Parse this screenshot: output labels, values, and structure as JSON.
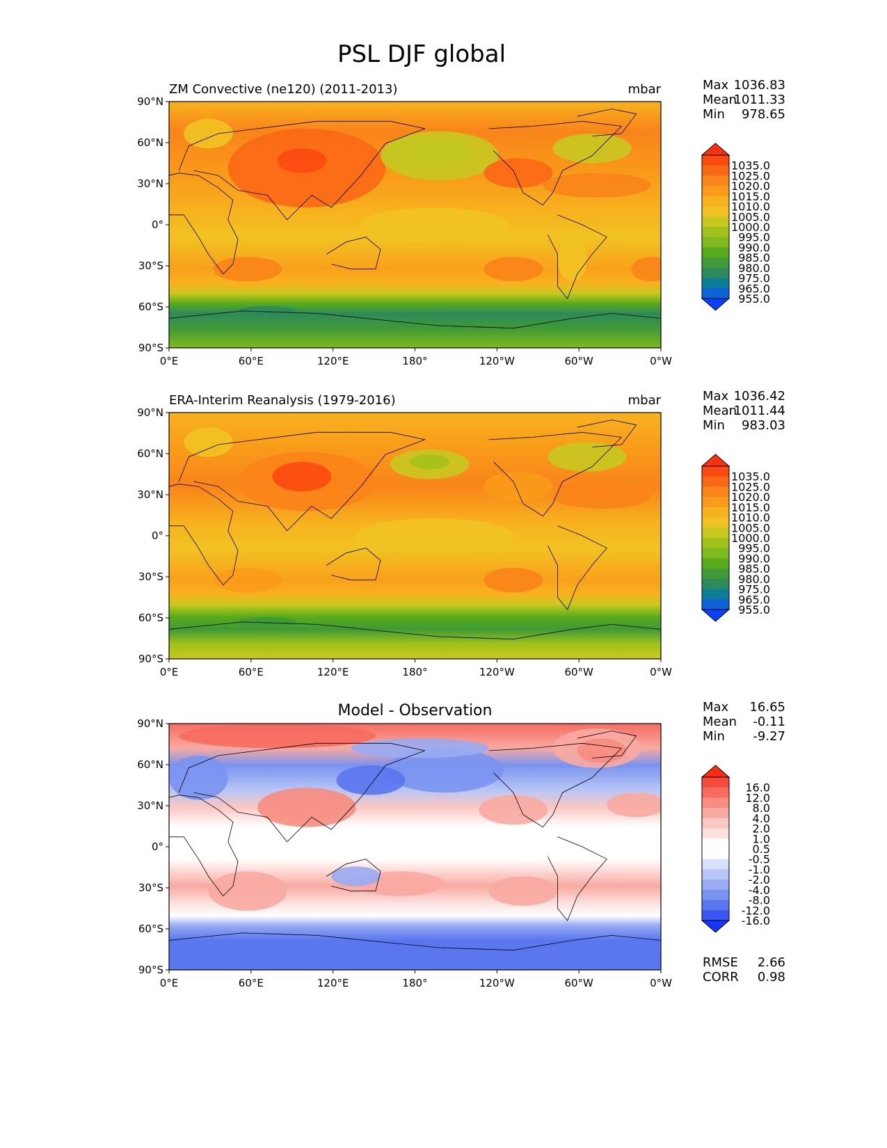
{
  "figure_title": "PSL DJF global",
  "colors": {
    "main_levels": [
      "#0a40ff",
      "#0b63d6",
      "#0d7e97",
      "#2e8a5a",
      "#3f9a37",
      "#58ab1a",
      "#7eb91d",
      "#a2c21b",
      "#c8c821",
      "#f1c322",
      "#f8b21f",
      "#f99b1a",
      "#f9841a",
      "#f96815",
      "#fb4a10",
      "#ff2f12"
    ],
    "diff_levels": [
      "#1438ff",
      "#3a56f2",
      "#5a76ee",
      "#7a93ef",
      "#98abf3",
      "#b8c6f7",
      "#d8e0fb",
      "#ffffff",
      "#ffffff",
      "#fbe2df",
      "#fac7c2",
      "#f8aaa2",
      "#f78c80",
      "#f66c5f",
      "#f44b3a",
      "#ff2b10"
    ]
  },
  "chart_data": [
    {
      "type": "heatmap",
      "title": "ZM Convective (ne120) (2011-2013)",
      "units": "mbar",
      "stats": {
        "max_label": "Max",
        "max": "1036.83",
        "mean_label": "Mean",
        "mean": "1011.33",
        "min_label": "Min",
        "min": "978.65"
      },
      "x_ticks": [
        "0°E",
        "60°E",
        "120°E",
        "180°",
        "120°W",
        "60°W",
        "0°W"
      ],
      "y_ticks": [
        "90°N",
        "60°N",
        "30°N",
        "0°",
        "30°S",
        "60°S",
        "90°S"
      ],
      "colorbar_labels": [
        "1035.0",
        "1025.0",
        "1020.0",
        "1015.0",
        "1010.0",
        "1005.0",
        "1000.0",
        "995.0",
        "990.0",
        "985.0",
        "980.0",
        "975.0",
        "965.0",
        "955.0"
      ]
    },
    {
      "type": "heatmap",
      "title": "ERA-Interim Reanalysis (1979-2016)",
      "units": "mbar",
      "stats": {
        "max_label": "Max",
        "max": "1036.42",
        "mean_label": "Mean",
        "mean": "1011.44",
        "min_label": "Min",
        "min": "983.03"
      },
      "x_ticks": [
        "0°E",
        "60°E",
        "120°E",
        "180°",
        "120°W",
        "60°W",
        "0°W"
      ],
      "y_ticks": [
        "90°N",
        "60°N",
        "30°N",
        "0°",
        "30°S",
        "60°S",
        "90°S"
      ],
      "colorbar_labels": [
        "1035.0",
        "1025.0",
        "1020.0",
        "1015.0",
        "1010.0",
        "1005.0",
        "1000.0",
        "995.0",
        "990.0",
        "985.0",
        "980.0",
        "975.0",
        "965.0",
        "955.0"
      ]
    },
    {
      "type": "heatmap",
      "title": "Model - Observation",
      "stats": {
        "max_label": "Max",
        "max": "16.65",
        "mean_label": "Mean",
        "mean": "-0.11",
        "min_label": "Min",
        "min": "-9.27"
      },
      "x_ticks": [
        "0°E",
        "60°E",
        "120°E",
        "180°",
        "120°W",
        "60°W",
        "0°W"
      ],
      "y_ticks": [
        "90°N",
        "60°N",
        "30°N",
        "0°",
        "30°S",
        "60°S",
        "90°S"
      ],
      "colorbar_labels": [
        "16.0",
        "12.0",
        "8.0",
        "4.0",
        "2.0",
        "1.0",
        "0.5",
        "-0.5",
        "-1.0",
        "-2.0",
        "-4.0",
        "-8.0",
        "-12.0",
        "-16.0"
      ],
      "extra_stats": {
        "rmse_label": "RMSE",
        "rmse": "2.66",
        "corr_label": "CORR",
        "corr": "0.98"
      }
    }
  ]
}
